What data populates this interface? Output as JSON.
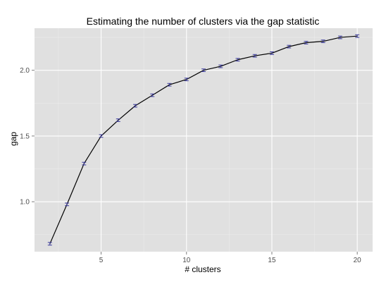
{
  "chart_data": {
    "type": "line",
    "title": "Estimating the number of clusters via the gap statistic",
    "xlabel": "# clusters",
    "ylabel": "gap",
    "xlim": [
      1.1,
      20.9
    ],
    "ylim": [
      0.62,
      2.32
    ],
    "x_ticks": [
      5,
      10,
      15,
      20
    ],
    "y_ticks": [
      1.0,
      1.5,
      2.0
    ],
    "y_tick_labels": [
      "1.0",
      "1.5",
      "2.0"
    ],
    "grid": true,
    "legend": "none",
    "colors": {
      "panel_background": "#e0e0e0",
      "grid_major": "#ffffff",
      "grid_minor": "#ebebeb",
      "line": "#000000",
      "error_bars": "#3a3a9a"
    },
    "series": [
      {
        "x": [
          2,
          3,
          4,
          5,
          6,
          7,
          8,
          9,
          10,
          11,
          12,
          13,
          14,
          15,
          16,
          17,
          18,
          19,
          20
        ],
        "y": [
          0.68,
          0.98,
          1.29,
          1.5,
          1.62,
          1.73,
          1.81,
          1.89,
          1.93,
          2.0,
          2.03,
          2.08,
          2.11,
          2.13,
          2.18,
          2.21,
          2.22,
          2.25,
          2.26
        ],
        "error": [
          0.01,
          0.01,
          0.01,
          0.01,
          0.01,
          0.01,
          0.01,
          0.01,
          0.01,
          0.01,
          0.01,
          0.01,
          0.01,
          0.01,
          0.01,
          0.01,
          0.01,
          0.01,
          0.01
        ]
      }
    ]
  }
}
